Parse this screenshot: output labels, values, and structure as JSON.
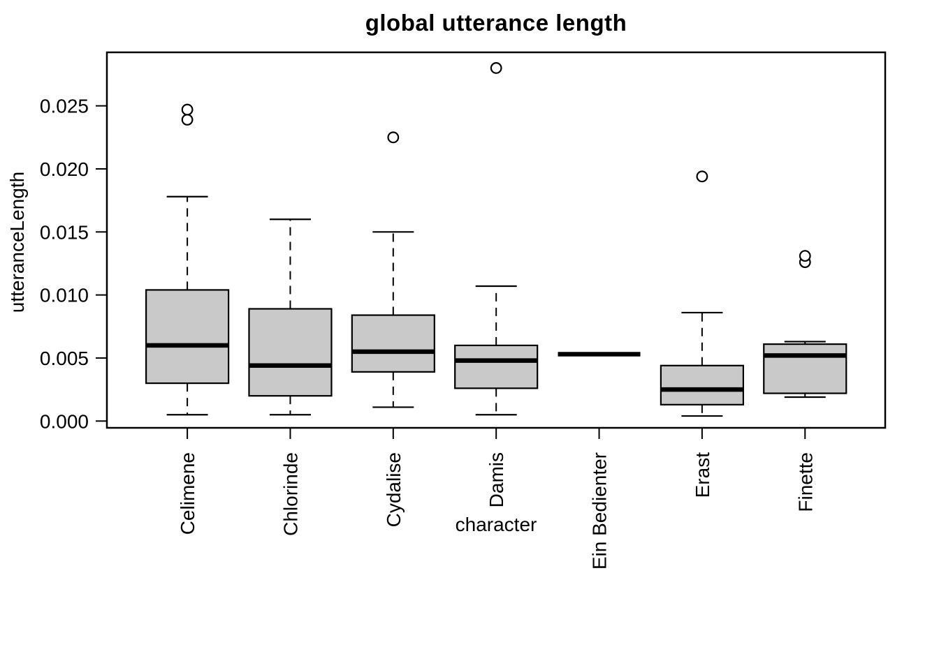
{
  "chart_data": {
    "type": "boxplot",
    "title": "global utterance length",
    "xlabel": "character",
    "ylabel": "utteranceLength",
    "ylim": [
      -0.0011,
      0.0292
    ],
    "yticks": [
      0,
      0.005,
      0.01,
      0.015,
      0.02,
      0.025
    ],
    "ytick_labels": [
      "0.000",
      "0.005",
      "0.010",
      "0.015",
      "0.020",
      "0.025"
    ],
    "grid": "off",
    "legend": "none",
    "box_fill": "#c9c9c9",
    "line_color": "#000000",
    "categories": [
      "Celimene",
      "Chlorinde",
      "Cydalise",
      "Damis",
      "Ein Bedienter",
      "Erast",
      "Finette"
    ],
    "boxes": [
      {
        "category": "Celimene",
        "whisker_low": 0.0005,
        "q1": 0.003,
        "median": 0.006,
        "q3": 0.0104,
        "whisker_high": 0.0178,
        "outliers": [
          0.0239,
          0.0247
        ]
      },
      {
        "category": "Chlorinde",
        "whisker_low": 0.0005,
        "q1": 0.002,
        "median": 0.0044,
        "q3": 0.0089,
        "whisker_high": 0.016,
        "outliers": []
      },
      {
        "category": "Cydalise",
        "whisker_low": 0.0011,
        "q1": 0.0039,
        "median": 0.0055,
        "q3": 0.0084,
        "whisker_high": 0.015,
        "outliers": [
          0.0225
        ]
      },
      {
        "category": "Damis",
        "whisker_low": 0.0005,
        "q1": 0.0026,
        "median": 0.0048,
        "q3": 0.006,
        "whisker_high": 0.0107,
        "outliers": [
          0.028
        ]
      },
      {
        "category": "Ein Bedienter",
        "whisker_low": 0.0053,
        "q1": 0.0053,
        "median": 0.0053,
        "q3": 0.0053,
        "whisker_high": 0.0053,
        "outliers": []
      },
      {
        "category": "Erast",
        "whisker_low": 0.0004,
        "q1": 0.0013,
        "median": 0.0025,
        "q3": 0.0044,
        "whisker_high": 0.0086,
        "outliers": [
          0.0194
        ]
      },
      {
        "category": "Finette",
        "whisker_low": 0.0019,
        "q1": 0.0022,
        "median": 0.0052,
        "q3": 0.0061,
        "whisker_high": 0.0063,
        "outliers": [
          0.0126,
          0.0131
        ]
      }
    ]
  }
}
